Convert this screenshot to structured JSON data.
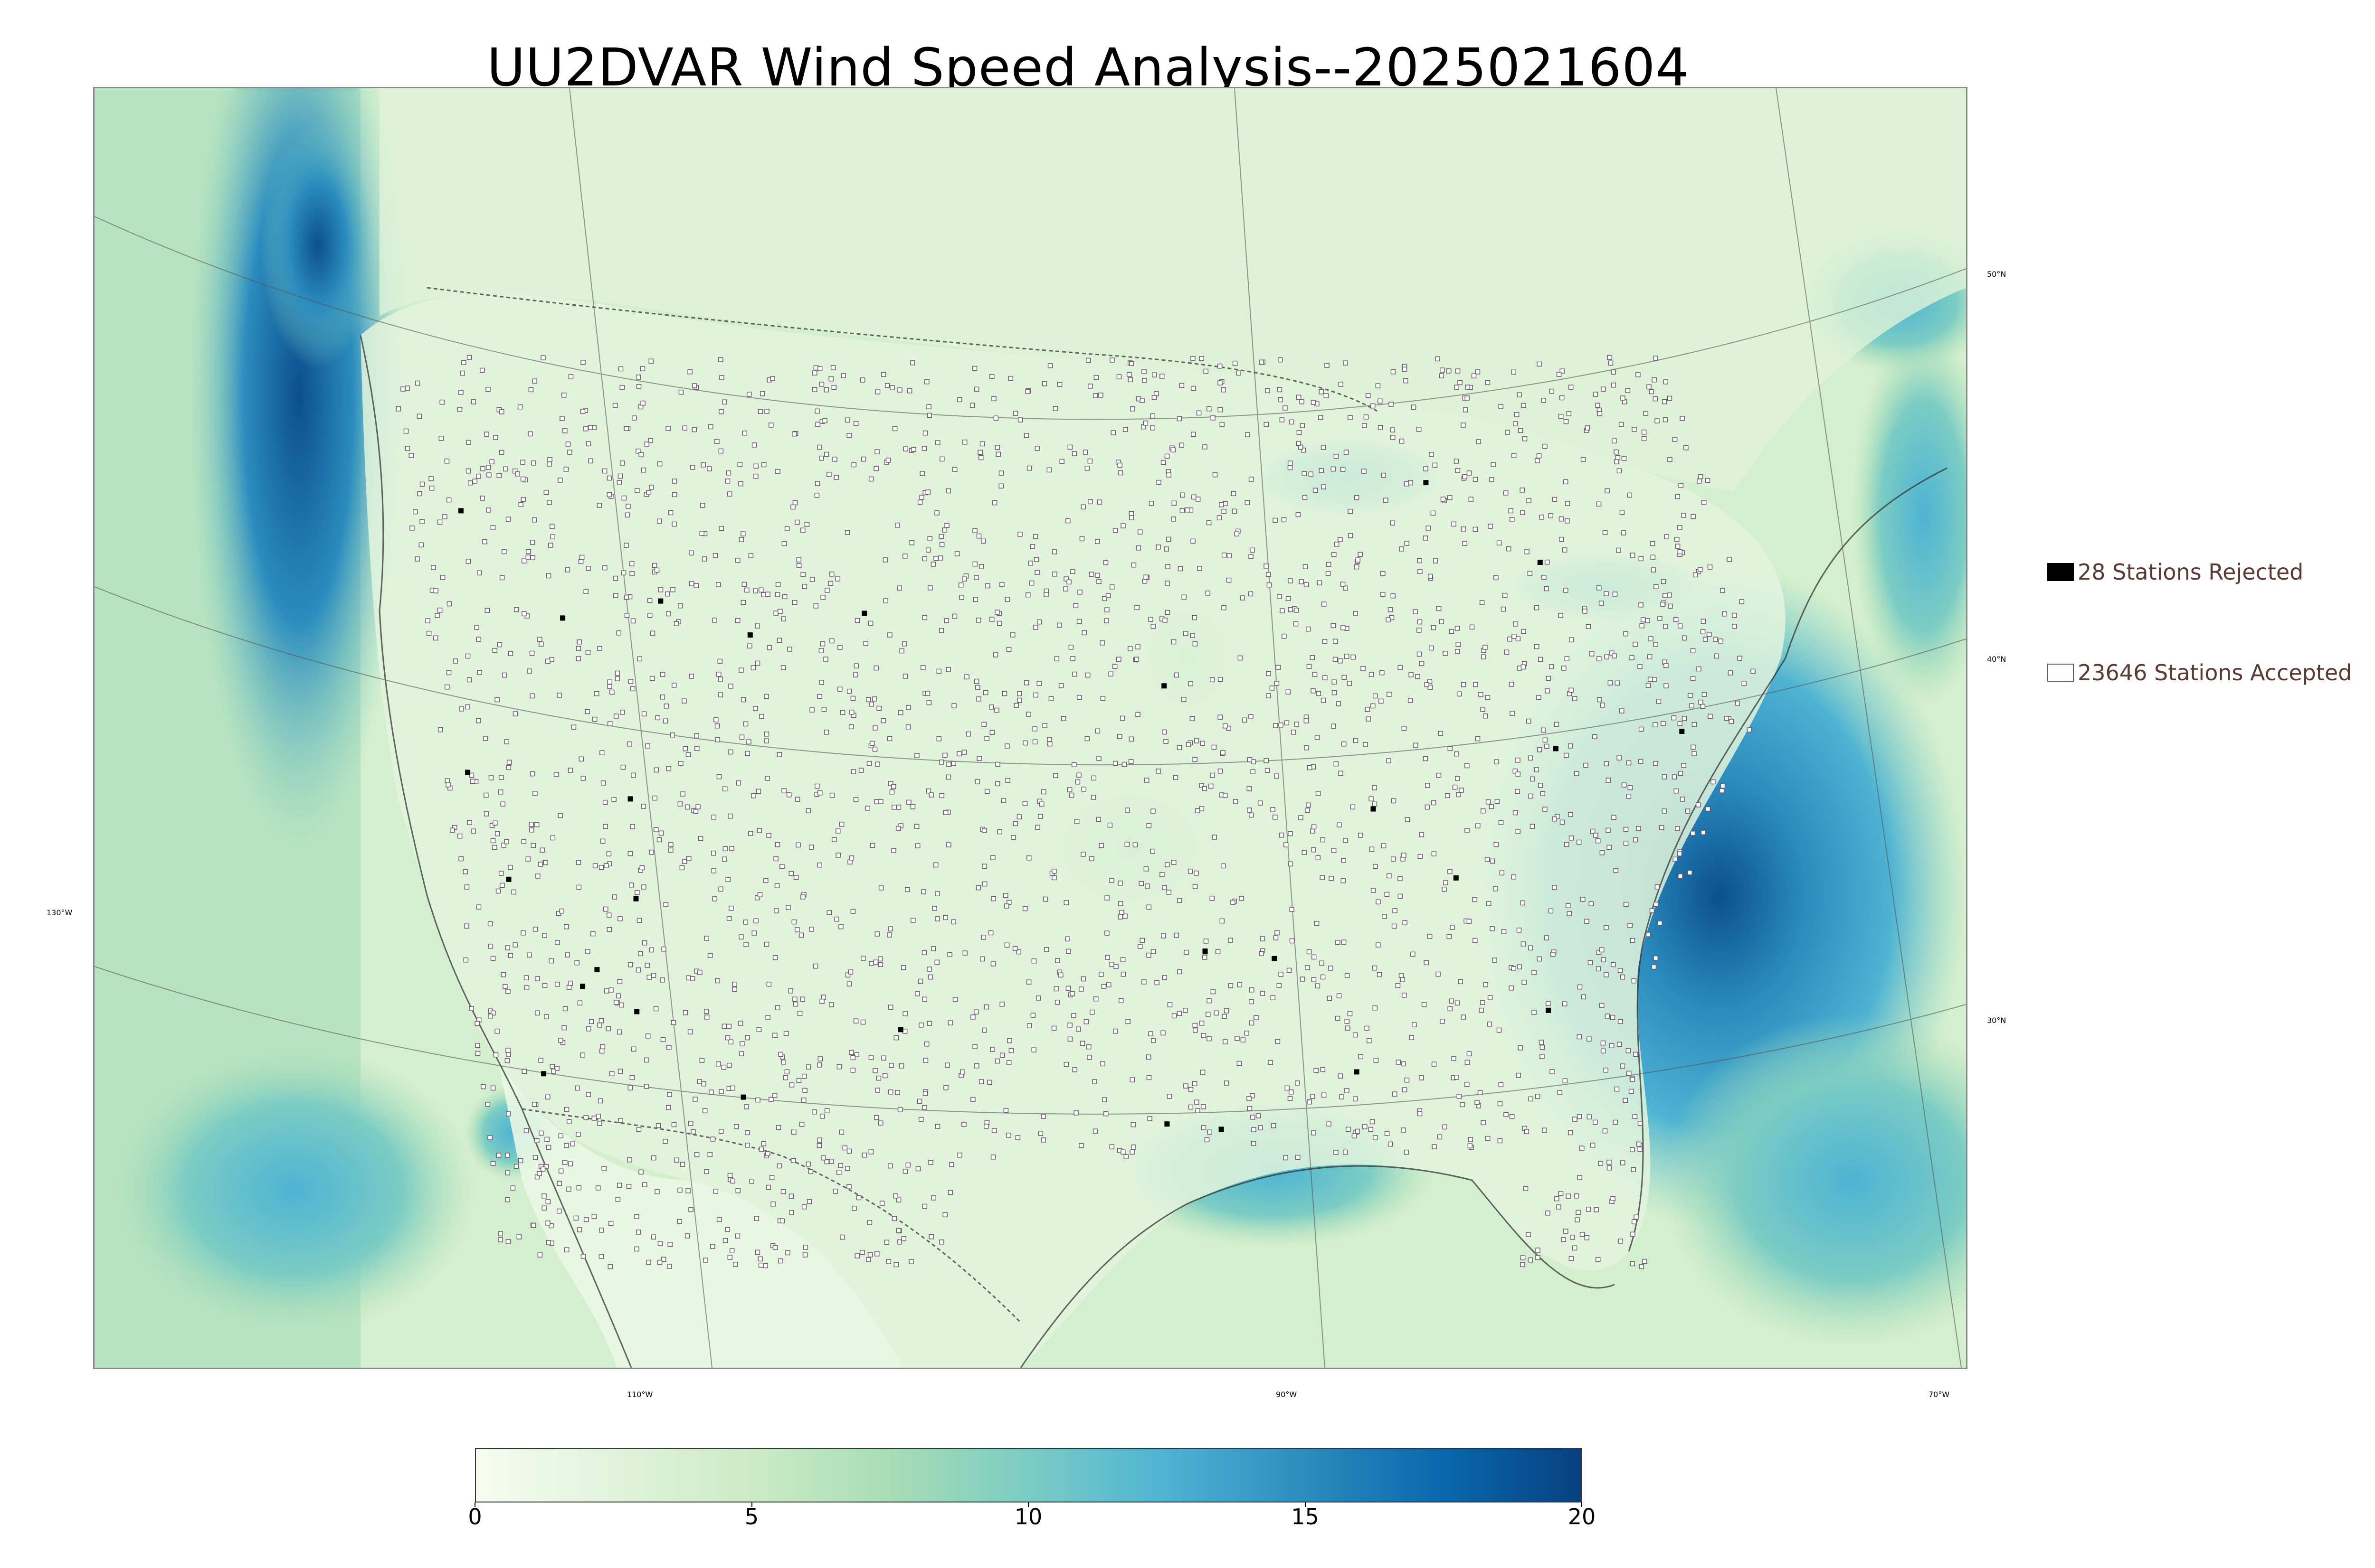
{
  "title": "UU2DVAR Wind Speed Analysis--2025021604",
  "map": {
    "lat_labels": [
      "50°N",
      "40°N",
      "30°N"
    ],
    "lon_labels": [
      "130°W",
      "110°W",
      "90°W",
      "70°W"
    ],
    "colors": {
      "land_base": "#e8f6e2",
      "ocean_strong": "#1f6fb0",
      "ocean_mid": "#4aa6cf",
      "light_green": "#c9ebc4",
      "station_marker_outline": "#6a5a6a",
      "rejected_marker": "#000000",
      "boundary_line": "#333333",
      "graticule": "#555555"
    }
  },
  "legend": {
    "rejected_label": "28 Stations Rejected",
    "accepted_label": "23646 Stations Accepted",
    "rejected_count": 28,
    "accepted_count": 23646
  },
  "colorbar": {
    "min": 0,
    "max": 20,
    "ticks": [
      "0",
      "5",
      "10",
      "15",
      "20"
    ],
    "colors": [
      "#f7fcf0",
      "#e0f3db",
      "#ccebc5",
      "#a8ddb5",
      "#7bccc4",
      "#4eb3d3",
      "#2b8cbe",
      "#0868ac",
      "#084081"
    ]
  }
}
